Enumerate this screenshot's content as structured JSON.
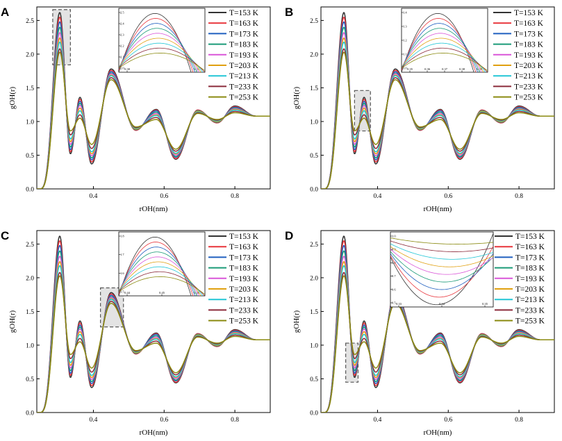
{
  "series_names": [
    "T=153 K",
    "T=163 K",
    "T=173 K",
    "T=183 K",
    "T=193 K",
    "T=203 K",
    "T=213 K",
    "T=233 K",
    "T=253 K"
  ],
  "series_colors": [
    "#333333",
    "#e8333a",
    "#1f5fbf",
    "#1a9a77",
    "#d955d8",
    "#e0a010",
    "#22c6d6",
    "#8b2a3a",
    "#8a8a10"
  ],
  "chart_data": [
    {
      "panel": "A",
      "type": "line",
      "xlabel": "rOH(nm)",
      "ylabel": "gOH(r)",
      "xlim": [
        0.24,
        0.9
      ],
      "ylim": [
        0.0,
        2.7
      ],
      "xticks": [
        0.4,
        0.6,
        0.8
      ],
      "yticks": [
        0.0,
        0.5,
        1.0,
        1.5,
        2.0,
        2.5
      ],
      "highlight": {
        "x": [
          0.285,
          0.335
        ],
        "y": [
          1.84,
          2.66
        ]
      },
      "inset": {
        "xticks": [
          "0.30",
          "0.31"
        ],
        "yticks": [
          "2.0",
          "2.1",
          "2.2",
          "2.3",
          "2.4",
          "2.5"
        ],
        "region": "first peak"
      },
      "series": [
        {
          "name": "T=153 K",
          "peak1": 2.62,
          "min1": 0.52,
          "peak2": 1.36,
          "min2": 0.37,
          "peak3": 1.78,
          "min3": 0.87,
          "peak4": 1.18,
          "min4": 0.44,
          "peak5": 1.17,
          "min5": 0.98,
          "peak6": 1.23
        },
        {
          "name": "T=163 K",
          "peak1": 2.55,
          "min1": 0.55,
          "peak2": 1.33,
          "min2": 0.4,
          "peak3": 1.76,
          "min3": 0.87,
          "peak4": 1.17,
          "min4": 0.45,
          "peak5": 1.17,
          "min5": 0.98,
          "peak6": 1.22
        },
        {
          "name": "T=173 K",
          "peak1": 2.48,
          "min1": 0.58,
          "peak2": 1.3,
          "min2": 0.43,
          "peak3": 1.74,
          "min3": 0.88,
          "peak4": 1.16,
          "min4": 0.47,
          "peak5": 1.16,
          "min5": 0.99,
          "peak6": 1.21
        },
        {
          "name": "T=183 K",
          "peak1": 2.4,
          "min1": 0.62,
          "peak2": 1.27,
          "min2": 0.46,
          "peak3": 1.72,
          "min3": 0.88,
          "peak4": 1.14,
          "min4": 0.48,
          "peak5": 1.16,
          "min5": 0.99,
          "peak6": 1.2
        },
        {
          "name": "T=193 K",
          "peak1": 2.32,
          "min1": 0.66,
          "peak2": 1.24,
          "min2": 0.49,
          "peak3": 1.71,
          "min3": 0.89,
          "peak4": 1.12,
          "min4": 0.5,
          "peak5": 1.15,
          "min5": 1.0,
          "peak6": 1.19
        },
        {
          "name": "T=203 K",
          "peak1": 2.24,
          "min1": 0.7,
          "peak2": 1.2,
          "min2": 0.52,
          "peak3": 1.69,
          "min3": 0.89,
          "peak4": 1.1,
          "min4": 0.52,
          "peak5": 1.15,
          "min5": 1.0,
          "peak6": 1.18
        },
        {
          "name": "T=213 K",
          "peak1": 2.18,
          "min1": 0.74,
          "peak2": 1.16,
          "min2": 0.55,
          "peak3": 1.68,
          "min3": 0.9,
          "peak4": 1.09,
          "min4": 0.53,
          "peak5": 1.14,
          "min5": 1.01,
          "peak6": 1.17
        },
        {
          "name": "T=233 K",
          "peak1": 2.08,
          "min1": 0.8,
          "peak2": 1.1,
          "min2": 0.6,
          "peak3": 1.65,
          "min3": 0.91,
          "peak4": 1.06,
          "min4": 0.56,
          "peak5": 1.13,
          "min5": 1.02,
          "peak6": 1.15
        },
        {
          "name": "T=253 K",
          "peak1": 2.03,
          "min1": 0.86,
          "peak2": 1.05,
          "min2": 0.66,
          "peak3": 1.62,
          "min3": 0.92,
          "peak4": 1.03,
          "min4": 0.59,
          "peak5": 1.12,
          "min5": 1.03,
          "peak6": 1.13
        }
      ]
    },
    {
      "panel": "B",
      "type": "line",
      "xlabel": "rOH(nm)",
      "ylabel": "gOH(r)",
      "xlim": [
        0.24,
        0.9
      ],
      "ylim": [
        0.0,
        2.7
      ],
      "xticks": [
        0.4,
        0.6,
        0.8
      ],
      "yticks": [
        0.0,
        0.5,
        1.0,
        1.5,
        2.0,
        2.5
      ],
      "highlight": {
        "x": [
          0.335,
          0.38
        ],
        "y": [
          0.86,
          1.46
        ]
      },
      "inset": {
        "xticks": [
          "0.35",
          "0.36",
          "0.37",
          "0.38",
          "0.39"
        ],
        "yticks": [
          "1.0",
          "1.1",
          "1.2",
          "1.3",
          "1.4"
        ],
        "region": "second peak"
      },
      "series_same_as_panel": "A"
    },
    {
      "panel": "C",
      "type": "line",
      "xlabel": "rOH(nm)",
      "ylabel": "gOH(r)",
      "xlim": [
        0.24,
        0.9
      ],
      "ylim": [
        0.0,
        2.7
      ],
      "xticks": [
        0.4,
        0.6,
        0.8
      ],
      "yticks": [
        0.0,
        0.5,
        1.0,
        1.5,
        2.0,
        2.5
      ],
      "highlight": {
        "x": [
          0.42,
          0.485
        ],
        "y": [
          1.27,
          1.85
        ]
      },
      "inset": {
        "xticks": [
          "0.44",
          "0.45",
          "0.46"
        ],
        "yticks": [
          "1.5",
          "1.6",
          "1.7",
          "1.8"
        ],
        "region": "third peak"
      },
      "series_same_as_panel": "A"
    },
    {
      "panel": "D",
      "type": "line",
      "xlabel": "rOH(nm)",
      "ylabel": "gOH(r)",
      "xlim": [
        0.24,
        0.9
      ],
      "ylim": [
        0.0,
        2.7
      ],
      "xticks": [
        0.4,
        0.6,
        0.8
      ],
      "yticks": [
        0.0,
        0.5,
        1.0,
        1.5,
        2.0,
        2.5
      ],
      "highlight": {
        "x": [
          0.31,
          0.345
        ],
        "y": [
          0.45,
          1.03
        ]
      },
      "inset": {
        "xticks": [
          "0.33",
          "0.34",
          "0.35"
        ],
        "yticks": [
          "0.5",
          "0.6",
          "0.7",
          "0.8",
          "0.9",
          "1.0"
        ],
        "region": "first minimum"
      },
      "series_same_as_panel": "A"
    }
  ]
}
